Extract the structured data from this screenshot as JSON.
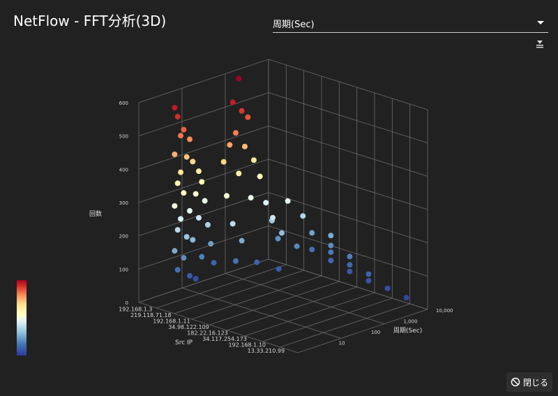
{
  "header": {
    "title": "NetFlow - FFT分析(3D)"
  },
  "select": {
    "value": "周期(Sec)"
  },
  "footer": {
    "close_label": "閉じる"
  },
  "colors": {
    "background": "#212121",
    "grid": "#6b6b6b",
    "colorscale": [
      "#2d3a9e",
      "#4575b4",
      "#91bfdb",
      "#e0f3f8",
      "#ffffbf",
      "#fee090",
      "#fc8d59",
      "#d73027",
      "#a50026"
    ]
  },
  "chart_data": {
    "type": "scatter3d",
    "title": "",
    "zlabel": "回数",
    "xlabel": "Src IP",
    "ylabel": "周期(Sec)",
    "z_ticks": [
      "0",
      "100",
      "200",
      "300",
      "400",
      "500",
      "600"
    ],
    "z_range": [
      0,
      600
    ],
    "x_categories": [
      "192.168.1.3",
      "219.118.71.18",
      "192.168.1.11",
      "34.98.122.109",
      "182.22.16.123",
      "34.117.254.173",
      "192.168.1.10",
      "13.33.210.99"
    ],
    "y_ticks": [
      "10",
      "100",
      "1,000",
      "10,000"
    ],
    "y_scale": "log",
    "colorbar": {
      "min": 0,
      "max": 600
    },
    "points": [
      {
        "x": 0,
        "y": 1.0,
        "z": 560
      },
      {
        "x": 0,
        "y": 1.1,
        "z": 530
      },
      {
        "x": 0,
        "y": 1.3,
        "z": 485
      },
      {
        "x": 0,
        "y": 1.2,
        "z": 470
      },
      {
        "x": 0,
        "y": 1.5,
        "z": 450
      },
      {
        "x": 0,
        "y": 1.0,
        "z": 420
      },
      {
        "x": 0,
        "y": 1.4,
        "z": 400
      },
      {
        "x": 0,
        "y": 1.6,
        "z": 380
      },
      {
        "x": 0,
        "y": 1.2,
        "z": 360
      },
      {
        "x": 0,
        "y": 1.8,
        "z": 345
      },
      {
        "x": 0,
        "y": 1.1,
        "z": 330
      },
      {
        "x": 0,
        "y": 1.9,
        "z": 310
      },
      {
        "x": 0,
        "y": 1.3,
        "z": 295
      },
      {
        "x": 0,
        "y": 1.7,
        "z": 280
      },
      {
        "x": 0,
        "y": 1.0,
        "z": 265
      },
      {
        "x": 0,
        "y": 2.0,
        "z": 250
      },
      {
        "x": 0,
        "y": 1.5,
        "z": 235
      },
      {
        "x": 0,
        "y": 1.2,
        "z": 220
      },
      {
        "x": 0,
        "y": 1.8,
        "z": 205
      },
      {
        "x": 0,
        "y": 1.1,
        "z": 190
      },
      {
        "x": 0,
        "y": 2.1,
        "z": 175
      },
      {
        "x": 0,
        "y": 1.4,
        "z": 160
      },
      {
        "x": 0,
        "y": 1.6,
        "z": 145
      },
      {
        "x": 0,
        "y": 1.0,
        "z": 130
      },
      {
        "x": 0,
        "y": 2.2,
        "z": 115
      },
      {
        "x": 0,
        "y": 1.3,
        "z": 100
      },
      {
        "x": 0,
        "y": 1.9,
        "z": 85
      },
      {
        "x": 0,
        "y": 1.1,
        "z": 70
      },
      {
        "x": 0,
        "y": 2.3,
        "z": 55
      },
      {
        "x": 0,
        "y": 1.5,
        "z": 40
      },
      {
        "x": 0,
        "y": 1.7,
        "z": 25
      },
      {
        "x": 1,
        "y": 2.5,
        "z": 620
      },
      {
        "x": 1,
        "y": 2.3,
        "z": 555
      },
      {
        "x": 1,
        "y": 2.6,
        "z": 520
      },
      {
        "x": 1,
        "y": 2.8,
        "z": 495
      },
      {
        "x": 1,
        "y": 2.4,
        "z": 460
      },
      {
        "x": 1,
        "y": 2.2,
        "z": 430
      },
      {
        "x": 1,
        "y": 2.7,
        "z": 410
      },
      {
        "x": 1,
        "y": 2.0,
        "z": 385
      },
      {
        "x": 1,
        "y": 3.0,
        "z": 360
      },
      {
        "x": 1,
        "y": 2.5,
        "z": 335
      },
      {
        "x": 1,
        "y": 3.2,
        "z": 305
      },
      {
        "x": 1,
        "y": 2.1,
        "z": 280
      },
      {
        "x": 1,
        "y": 2.9,
        "z": 250
      },
      {
        "x": 1,
        "y": 3.4,
        "z": 220
      },
      {
        "x": 1,
        "y": 2.3,
        "z": 190
      },
      {
        "x": 1,
        "y": 3.6,
        "z": 160
      },
      {
        "x": 1,
        "y": 2.6,
        "z": 130
      },
      {
        "x": 1,
        "y": 3.8,
        "z": 100
      },
      {
        "x": 1,
        "y": 2.4,
        "z": 75
      },
      {
        "x": 1,
        "y": 3.1,
        "z": 50
      },
      {
        "x": 2,
        "y": 3.5,
        "z": 240
      },
      {
        "x": 2,
        "y": 3.0,
        "z": 205
      },
      {
        "x": 2,
        "y": 4.0,
        "z": 180
      },
      {
        "x": 2,
        "y": 3.3,
        "z": 150
      },
      {
        "x": 2,
        "y": 4.5,
        "z": 120
      },
      {
        "x": 2,
        "y": 3.8,
        "z": 95
      },
      {
        "x": 2,
        "y": 5.0,
        "z": 70
      },
      {
        "x": 2,
        "y": 3.2,
        "z": 45
      },
      {
        "x": 3,
        "y": 5.0,
        "z": 130
      },
      {
        "x": 3,
        "y": 6.0,
        "z": 100
      },
      {
        "x": 3,
        "y": 7.0,
        "z": 80
      },
      {
        "x": 3,
        "y": 5.5,
        "z": 55
      },
      {
        "x": 4,
        "y": 7.0,
        "z": 85
      },
      {
        "x": 4,
        "y": 8.0,
        "z": 60
      },
      {
        "x": 4,
        "y": 9.0,
        "z": 40
      },
      {
        "x": 5,
        "y": 8.5,
        "z": 50
      },
      {
        "x": 5,
        "y": 9.5,
        "z": 30
      },
      {
        "x": 6,
        "y": 9.0,
        "z": 25
      },
      {
        "x": 7,
        "y": 9.5,
        "z": 15
      }
    ]
  }
}
